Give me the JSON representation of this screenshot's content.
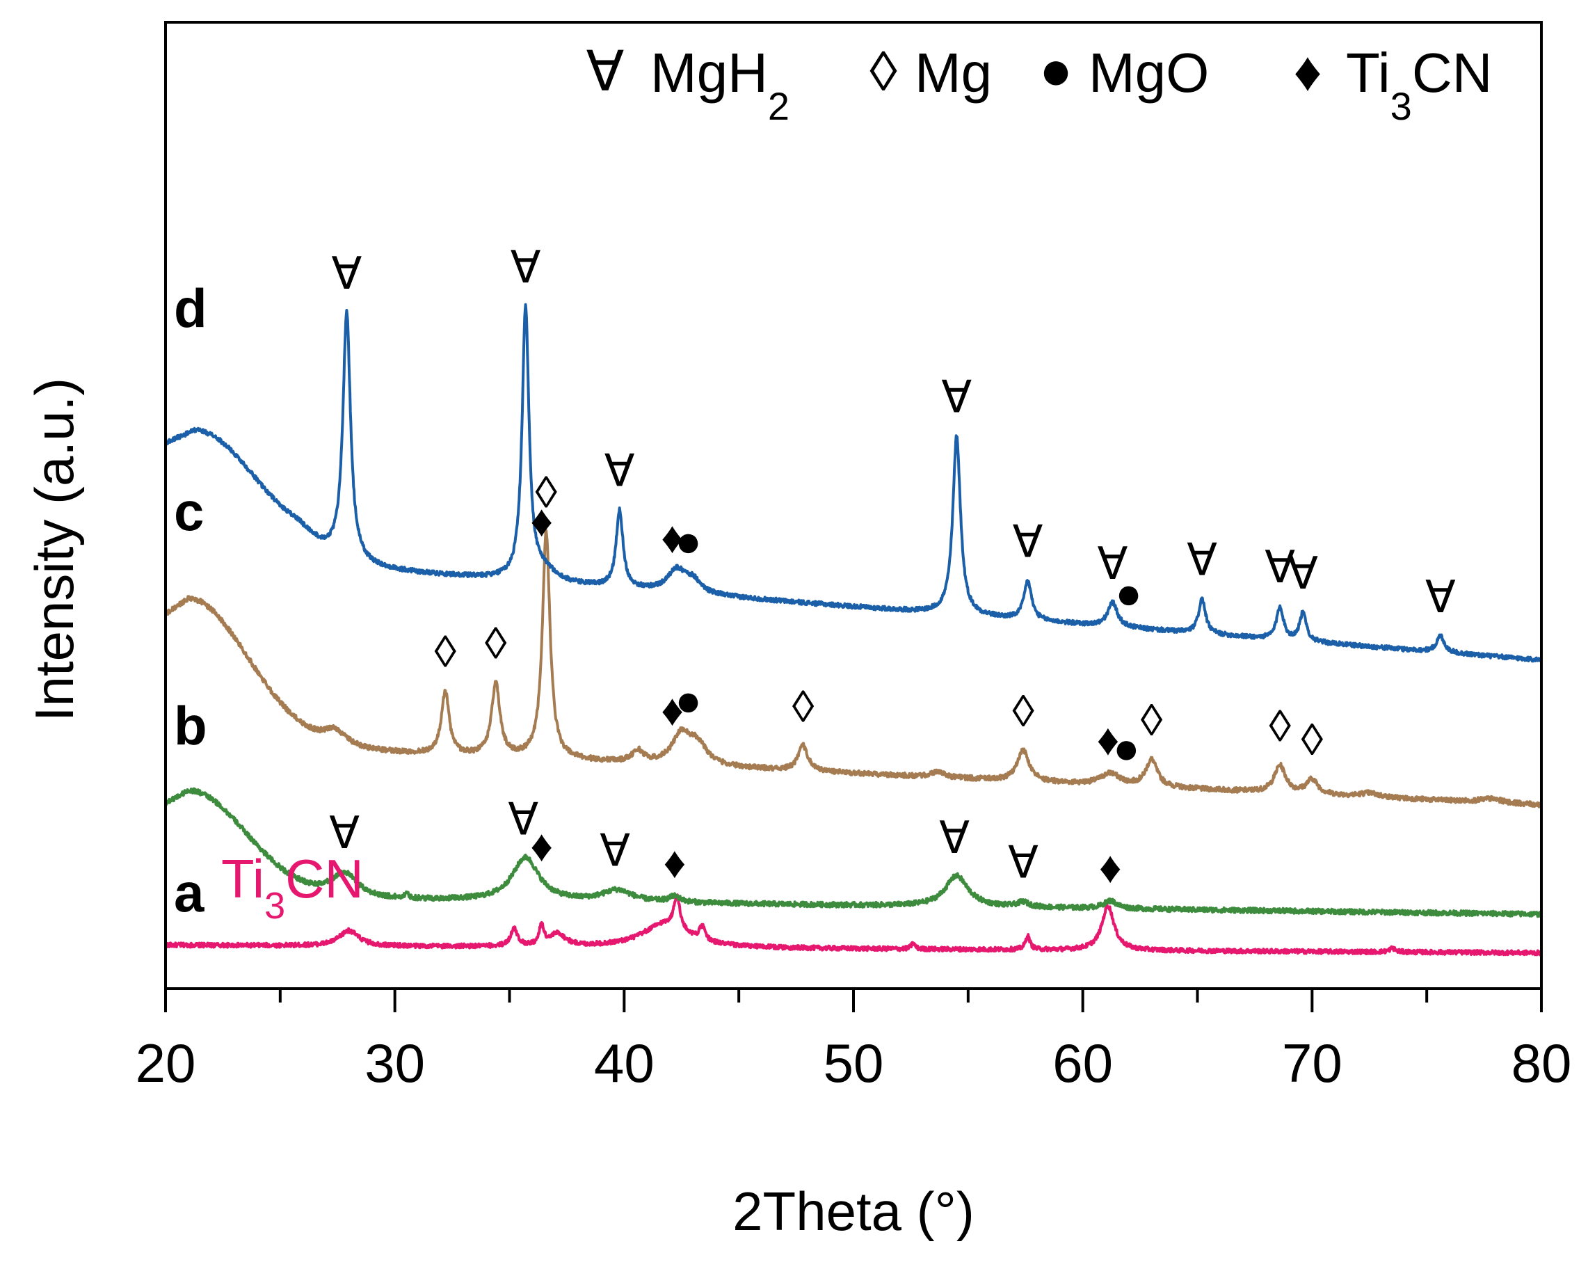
{
  "chart_data": {
    "type": "line",
    "title": "",
    "xlabel": "2Theta (°)",
    "ylabel": "Intensity (a.u.)",
    "xlim": [
      20,
      80
    ],
    "ylim": [
      0,
      100
    ],
    "xticks": [
      20,
      30,
      40,
      50,
      60,
      70,
      80
    ],
    "xtick_labels": [
      "20",
      "30",
      "40",
      "50",
      "60",
      "70",
      "80"
    ],
    "yticks_shown": false,
    "grid": false,
    "legend": {
      "placement": "top-right",
      "entries": [
        {
          "symbol": "∀",
          "label": "MgH",
          "sub": "2",
          "phase": "MgH2"
        },
        {
          "symbol": "◊",
          "label": "Mg",
          "sub": "",
          "phase": "Mg"
        },
        {
          "symbol": "●",
          "label": "MgO",
          "sub": "",
          "phase": "MgO"
        },
        {
          "symbol": "♦",
          "label": "Ti",
          "sub": "3",
          "suffix": "CN",
          "phase": "Ti3CN"
        }
      ]
    },
    "series": [
      {
        "name": "a",
        "sublabel_main": "Ti",
        "sublabel_sub": "3",
        "sublabel_suffix": "CN",
        "color": "#e6176e",
        "baseline": 4.5,
        "slope": -0.8,
        "hump": {
          "amp": 0,
          "center": 21,
          "width": 2.5
        },
        "noise": 0.22,
        "peaks": [
          [
            28,
            1.6,
            0.5
          ],
          [
            35.2,
            1.8,
            0.18
          ],
          [
            36.4,
            2.1,
            0.12
          ],
          [
            37.1,
            1.3,
            0.4
          ],
          [
            41.8,
            2.5,
            1.2
          ],
          [
            42.3,
            3.4,
            0.15
          ],
          [
            43.4,
            1.4,
            0.15
          ],
          [
            57.6,
            1.4,
            0.12
          ],
          [
            61.1,
            4.6,
            0.32
          ],
          [
            52.6,
            0.6,
            0.1
          ],
          [
            73.5,
            0.4,
            0.15
          ]
        ]
      },
      {
        "name": "b",
        "color": "#3d8b3d",
        "baseline": 9.5,
        "slope": -1.8,
        "hump": {
          "amp": 11,
          "center": 21,
          "width": 2.5
        },
        "noise": 0.25,
        "peaks": [
          [
            27.8,
            2.5,
            0.7
          ],
          [
            35.7,
            4.5,
            0.7
          ],
          [
            39.7,
            1.2,
            0.8
          ],
          [
            42.2,
            0.6,
            0.3
          ],
          [
            54.5,
            3.2,
            0.6
          ],
          [
            57.4,
            0.5,
            0.3
          ],
          [
            61.2,
            0.8,
            0.35
          ],
          [
            30.5,
            0.5,
            0.1
          ]
        ]
      },
      {
        "name": "c",
        "color": "#a57c52",
        "baseline": 25.5,
        "slope": -6.5,
        "hump": {
          "amp": 15,
          "center": 21,
          "width": 2.6
        },
        "noise": 0.25,
        "peaks": [
          [
            27.4,
            1.5,
            0.6
          ],
          [
            32.2,
            6.5,
            0.2
          ],
          [
            34.4,
            7.5,
            0.22
          ],
          [
            36.6,
            23.5,
            0.2
          ],
          [
            40.6,
            1.2,
            0.3
          ],
          [
            42.5,
            3.0,
            0.5
          ],
          [
            43.2,
            2.0,
            0.5
          ],
          [
            47.8,
            2.6,
            0.25
          ],
          [
            53.7,
            0.6,
            0.3
          ],
          [
            57.4,
            3.2,
            0.3
          ],
          [
            61.2,
            1.2,
            0.5
          ],
          [
            63,
            2.8,
            0.3
          ],
          [
            68.6,
            2.8,
            0.3
          ],
          [
            70,
            1.5,
            0.3
          ],
          [
            72.5,
            0.4,
            0.5
          ],
          [
            77.8,
            0.4,
            0.6
          ]
        ]
      },
      {
        "name": "d",
        "color": "#1a5fa8",
        "baseline": 45,
        "slope": -11,
        "hump": {
          "amp": 13,
          "center": 21.3,
          "width": 2.8
        },
        "noise": 0.22,
        "peaks": [
          [
            25.8,
            0.8,
            0.8
          ],
          [
            27.9,
            25.5,
            0.2
          ],
          [
            35.7,
            28,
            0.18
          ],
          [
            36.5,
            1.2,
            0.6
          ],
          [
            39.8,
            8,
            0.18
          ],
          [
            42.3,
            2.3,
            0.5
          ],
          [
            43,
            1.2,
            0.4
          ],
          [
            54.5,
            18.5,
            0.2
          ],
          [
            57.6,
            4,
            0.2
          ],
          [
            61.3,
            2.5,
            0.25
          ],
          [
            65.2,
            3.6,
            0.18
          ],
          [
            68.6,
            3.4,
            0.18
          ],
          [
            69.6,
            2.9,
            0.18
          ],
          [
            75.6,
            1.7,
            0.2
          ]
        ]
      }
    ],
    "phase_markers": [
      {
        "series": "d",
        "phase": "MgH2",
        "symbol": "∀",
        "x": 27.9
      },
      {
        "series": "d",
        "phase": "MgH2",
        "symbol": "∀",
        "x": 35.7
      },
      {
        "series": "d",
        "phase": "MgH2",
        "symbol": "∀",
        "x": 39.8
      },
      {
        "series": "d",
        "phase": "Ti3CN",
        "symbol": "♦",
        "x": 36.4
      },
      {
        "series": "d",
        "phase": "Ti3CN",
        "symbol": "♦",
        "x": 42.1
      },
      {
        "series": "d",
        "phase": "MgO",
        "symbol": "●",
        "x": 42.8
      },
      {
        "series": "d",
        "phase": "MgH2",
        "symbol": "∀",
        "x": 54.5
      },
      {
        "series": "d",
        "phase": "MgH2",
        "symbol": "∀",
        "x": 57.6
      },
      {
        "series": "d",
        "phase": "MgH2",
        "symbol": "∀",
        "x": 61.3
      },
      {
        "series": "d",
        "phase": "MgO",
        "symbol": "●",
        "x": 62.0
      },
      {
        "series": "d",
        "phase": "MgH2",
        "symbol": "∀",
        "x": 65.2
      },
      {
        "series": "d",
        "phase": "MgH2",
        "symbol": "∀",
        "x": 68.6
      },
      {
        "series": "d",
        "phase": "MgH2",
        "symbol": "∀",
        "x": 69.6
      },
      {
        "series": "d",
        "phase": "MgH2",
        "symbol": "∀",
        "x": 75.6
      },
      {
        "series": "c",
        "phase": "Mg",
        "symbol": "◊",
        "x": 32.2
      },
      {
        "series": "c",
        "phase": "Mg",
        "symbol": "◊",
        "x": 34.4
      },
      {
        "series": "c",
        "phase": "Mg",
        "symbol": "◊",
        "x": 36.6
      },
      {
        "series": "c",
        "phase": "Ti3CN",
        "symbol": "♦",
        "x": 42.1
      },
      {
        "series": "c",
        "phase": "MgO",
        "symbol": "●",
        "x": 42.8
      },
      {
        "series": "c",
        "phase": "Mg",
        "symbol": "◊",
        "x": 47.8
      },
      {
        "series": "c",
        "phase": "Mg",
        "symbol": "◊",
        "x": 57.4
      },
      {
        "series": "c",
        "phase": "Ti3CN",
        "symbol": "♦",
        "x": 61.1
      },
      {
        "series": "c",
        "phase": "MgO",
        "symbol": "●",
        "x": 61.9
      },
      {
        "series": "c",
        "phase": "Mg",
        "symbol": "◊",
        "x": 63.0
      },
      {
        "series": "c",
        "phase": "Mg",
        "symbol": "◊",
        "x": 68.6
      },
      {
        "series": "c",
        "phase": "Mg",
        "symbol": "◊",
        "x": 70.0
      },
      {
        "series": "b",
        "phase": "MgH2",
        "symbol": "∀",
        "x": 27.8
      },
      {
        "series": "b",
        "phase": "MgH2",
        "symbol": "∀",
        "x": 35.6
      },
      {
        "series": "b",
        "phase": "Ti3CN",
        "symbol": "♦",
        "x": 36.4
      },
      {
        "series": "b",
        "phase": "MgH2",
        "symbol": "∀",
        "x": 39.6
      },
      {
        "series": "b",
        "phase": "Ti3CN",
        "symbol": "♦",
        "x": 42.2
      },
      {
        "series": "b",
        "phase": "MgH2",
        "symbol": "∀",
        "x": 54.4
      },
      {
        "series": "b",
        "phase": "MgH2",
        "symbol": "∀",
        "x": 57.4
      },
      {
        "series": "b",
        "phase": "Ti3CN",
        "symbol": "♦",
        "x": 61.2
      }
    ]
  }
}
